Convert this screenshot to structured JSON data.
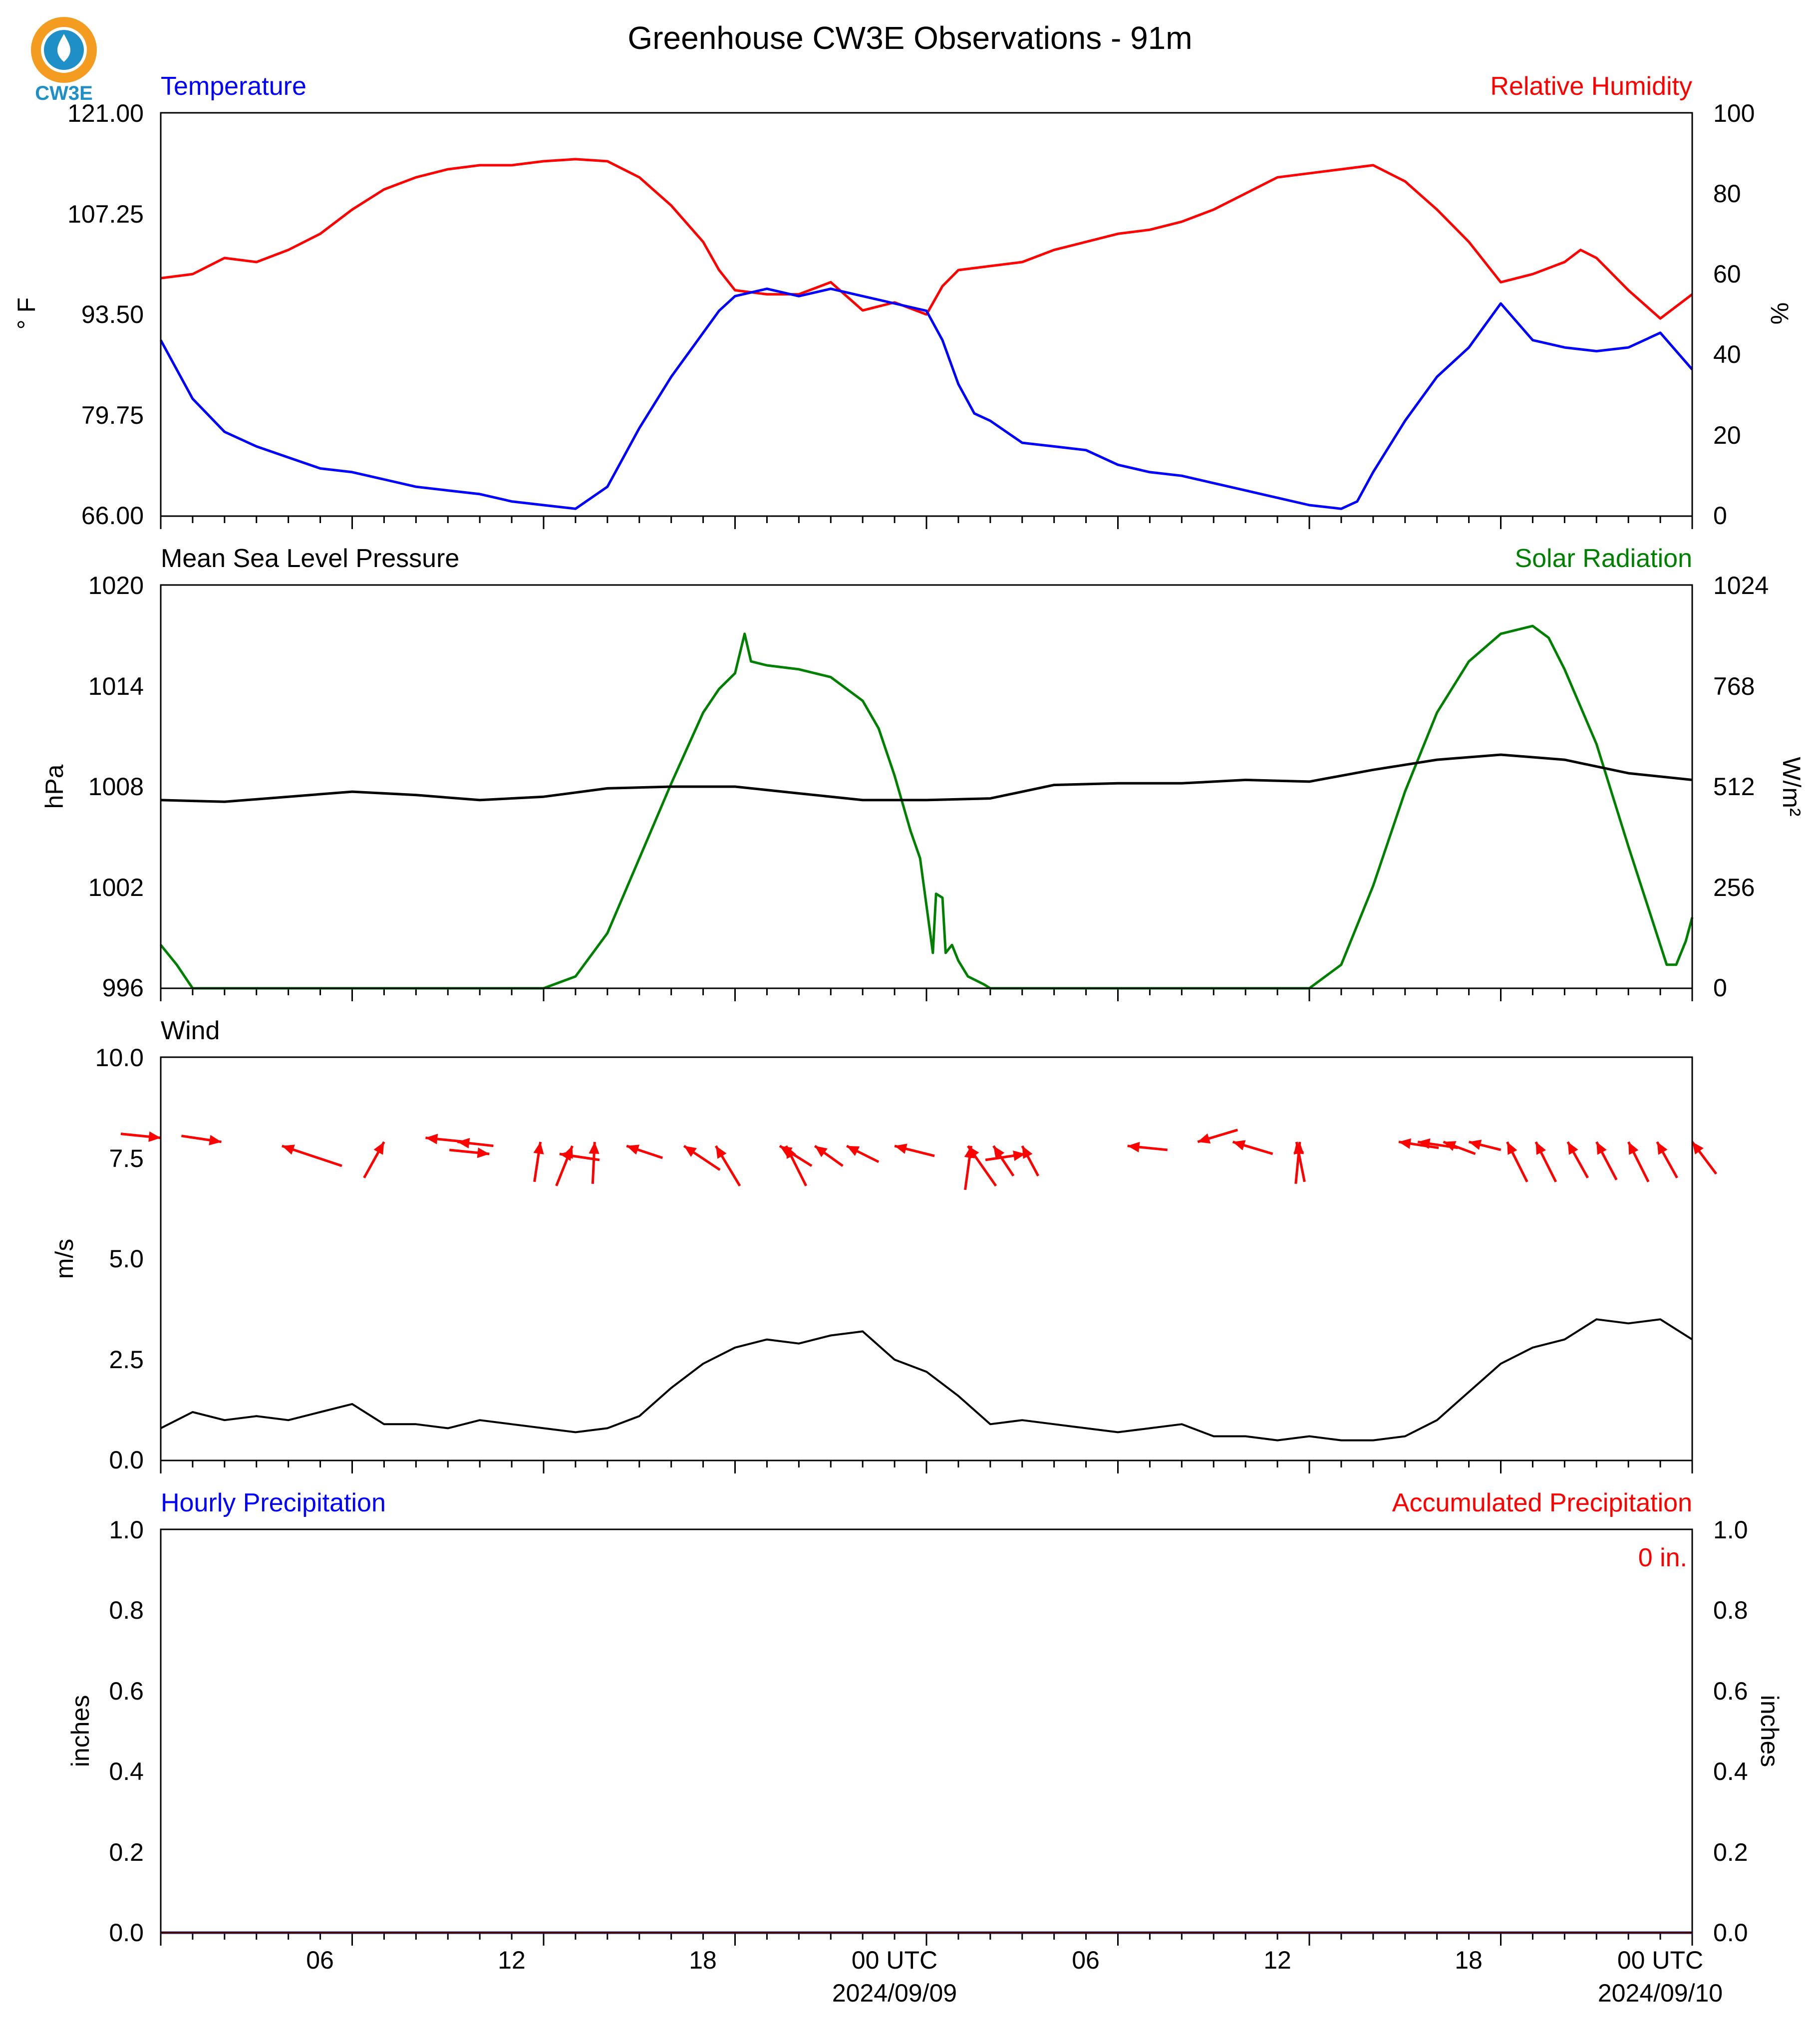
{
  "title": "Greenhouse CW3E Observations - 91m",
  "logo": {
    "text": "CW3E",
    "ring_color": "#f39c1f",
    "drop_color": "#1f8fc8"
  },
  "colors": {
    "temperature": "#0000ff",
    "humidity": "#ff0000",
    "pressure": "#000000",
    "solar": "#008000",
    "wind_speed": "#000000",
    "wind_arrow": "#ff0000",
    "precip_hourly": "#0000ff",
    "precip_accum": "#ff0000"
  },
  "x_axis": {
    "unit": "hours since 2024-09-08 00 UTC",
    "range": [
      0,
      48
    ],
    "major_ticks": [
      {
        "x": 6,
        "label": "06",
        "date": ""
      },
      {
        "x": 12,
        "label": "12",
        "date": ""
      },
      {
        "x": 18,
        "label": "18",
        "date": ""
      },
      {
        "x": 24,
        "label": "00 UTC",
        "date": "2024/09/09"
      },
      {
        "x": 30,
        "label": "06",
        "date": ""
      },
      {
        "x": 36,
        "label": "12",
        "date": ""
      },
      {
        "x": 42,
        "label": "18",
        "date": ""
      },
      {
        "x": 48,
        "label": "00 UTC",
        "date": "2024/09/10"
      }
    ]
  },
  "panels": {
    "temp_rh": {
      "left_title": "Temperature",
      "right_title": "Relative Humidity",
      "left_ylabel": "° F",
      "right_ylabel": "%",
      "left_ticks": [
        "121.00",
        "107.25",
        "93.50",
        "79.75",
        "66.00"
      ],
      "right_ticks": [
        "100",
        "80",
        "60",
        "40",
        "20",
        "0"
      ]
    },
    "pressure_solar": {
      "left_title": "Mean Sea Level Pressure",
      "right_title": "Solar Radiation",
      "left_ylabel": "hPa",
      "right_ylabel": "W/m²",
      "left_ticks": [
        "1020",
        "1014",
        "1008",
        "1002",
        "996"
      ],
      "right_ticks": [
        "1024",
        "768",
        "512",
        "256",
        "0"
      ]
    },
    "wind": {
      "left_title": "Wind",
      "left_ylabel": "m/s",
      "left_ticks": [
        "10.0",
        "7.5",
        "5.0",
        "2.5",
        "0.0"
      ]
    },
    "precip": {
      "left_title": "Hourly Precipitation",
      "right_title": "Accumulated Precipitation",
      "left_ylabel": "inches",
      "right_ylabel": "inches",
      "left_ticks": [
        "1.0",
        "0.8",
        "0.6",
        "0.4",
        "0.2",
        "0.0"
      ],
      "right_ticks": [
        "1.0",
        "0.8",
        "0.6",
        "0.4",
        "0.2",
        "0.0"
      ],
      "total_label": "0 in."
    }
  },
  "chart_data": [
    {
      "type": "line",
      "title": "Temperature",
      "x_unit": "hours since 2024-09-08 00 UTC",
      "ylim": [
        66,
        121
      ],
      "y_unit": "°F",
      "series": [
        {
          "name": "Temperature",
          "x": [
            0,
            1,
            2,
            3,
            4,
            5,
            6,
            7,
            8,
            9,
            10,
            11,
            12,
            13,
            14,
            15,
            16,
            17,
            17.5,
            18,
            19,
            20,
            21,
            22,
            23,
            24,
            24.5,
            25,
            25.5,
            26,
            27,
            28,
            29,
            30,
            31,
            32,
            33,
            34,
            35,
            36,
            37,
            37.5,
            38,
            39,
            40,
            41,
            41.5,
            42,
            43,
            44,
            45,
            46,
            47,
            48
          ],
          "y": [
            90,
            82,
            77.5,
            75.5,
            74,
            72.5,
            72,
            71,
            70,
            69.5,
            69,
            68,
            67.5,
            67,
            70,
            78,
            85,
            91,
            94,
            96,
            97,
            96,
            97,
            96,
            95,
            94,
            90,
            84,
            80,
            79,
            76,
            75.5,
            75,
            73,
            72,
            71.5,
            70.5,
            69.5,
            68.5,
            67.5,
            67,
            68,
            72,
            79,
            85,
            89,
            92,
            95,
            90,
            89,
            88.5,
            89,
            91,
            86
          ]
        }
      ]
    },
    {
      "type": "line",
      "title": "Relative Humidity",
      "x_unit": "hours since 2024-09-08 00 UTC",
      "ylim": [
        0,
        100
      ],
      "y_unit": "%",
      "series": [
        {
          "name": "Relative Humidity",
          "x": [
            0,
            1,
            2,
            3,
            4,
            5,
            6,
            7,
            8,
            9,
            10,
            11,
            12,
            13,
            14,
            15,
            16,
            17,
            17.5,
            18,
            19,
            20,
            21,
            22,
            23,
            24,
            24.5,
            25,
            26,
            27,
            28,
            29,
            30,
            31,
            32,
            33,
            34,
            35,
            36,
            37,
            38,
            39,
            40,
            41,
            42,
            43,
            44,
            44.5,
            45,
            46,
            47,
            48
          ],
          "y": [
            59,
            60,
            64,
            63,
            66,
            70,
            76,
            81,
            84,
            86,
            87,
            87,
            88,
            88.5,
            88,
            84,
            77,
            68,
            61,
            56,
            55,
            55,
            58,
            51,
            53,
            50,
            57,
            61,
            62,
            63,
            66,
            68,
            70,
            71,
            73,
            76,
            80,
            84,
            85,
            86,
            87,
            83,
            76,
            68,
            58,
            60,
            63,
            66,
            64,
            56,
            49,
            55
          ]
        }
      ]
    },
    {
      "type": "line",
      "title": "Mean Sea Level Pressure",
      "x_unit": "hours since 2024-09-08 00 UTC",
      "ylim": [
        996,
        1020
      ],
      "y_unit": "hPa",
      "series": [
        {
          "name": "Mean Sea Level Pressure",
          "x": [
            0,
            2,
            4,
            6,
            8,
            10,
            12,
            14,
            16,
            18,
            20,
            22,
            24,
            26,
            28,
            30,
            32,
            34,
            36,
            38,
            40,
            42,
            44,
            46,
            48
          ],
          "y": [
            1007.2,
            1007.1,
            1007.4,
            1007.7,
            1007.5,
            1007.2,
            1007.4,
            1007.9,
            1008.0,
            1008.0,
            1007.6,
            1007.2,
            1007.2,
            1007.3,
            1008.1,
            1008.2,
            1008.2,
            1008.4,
            1008.3,
            1009.0,
            1009.6,
            1009.9,
            1009.6,
            1008.8,
            1008.4
          ]
        }
      ]
    },
    {
      "type": "line",
      "title": "Solar Radiation",
      "x_unit": "hours since 2024-09-08 00 UTC",
      "ylim": [
        0,
        1024
      ],
      "y_unit": "W/m²",
      "series": [
        {
          "name": "Solar Radiation",
          "x": [
            0,
            0.5,
            1,
            12,
            13,
            14,
            15,
            16,
            17,
            17.5,
            18,
            18.3,
            18.5,
            19,
            20,
            21,
            22,
            22.5,
            23,
            23.5,
            23.8,
            24,
            24.2,
            24.3,
            24.5,
            24.6,
            24.8,
            25,
            25.3,
            25.8,
            26,
            36,
            37,
            38,
            39,
            40,
            41,
            42,
            43,
            43.5,
            44,
            45,
            46,
            47,
            47.2,
            47.5,
            47.8,
            48
          ],
          "y": [
            110,
            60,
            0,
            0,
            30,
            140,
            330,
            520,
            700,
            760,
            800,
            900,
            830,
            820,
            810,
            790,
            730,
            660,
            540,
            400,
            330,
            210,
            90,
            240,
            230,
            90,
            110,
            70,
            30,
            10,
            0,
            0,
            60,
            260,
            500,
            700,
            830,
            900,
            920,
            890,
            810,
            620,
            360,
            110,
            60,
            60,
            120,
            180
          ]
        }
      ]
    },
    {
      "type": "line",
      "title": "Wind",
      "x_unit": "hours since 2024-09-08 00 UTC",
      "ylim": [
        0,
        10
      ],
      "y_unit": "m/s",
      "series": [
        {
          "name": "Wind speed",
          "x": [
            0,
            1,
            2,
            3,
            4,
            5,
            6,
            7,
            8,
            9,
            10,
            11,
            12,
            13,
            14,
            15,
            16,
            17,
            18,
            19,
            20,
            21,
            22,
            23,
            24,
            25,
            26,
            27,
            28,
            29,
            30,
            31,
            32,
            33,
            34,
            35,
            36,
            37,
            38,
            39,
            40,
            41,
            42,
            43,
            44,
            45,
            46,
            47,
            48
          ],
          "y": [
            0.8,
            1.2,
            1.0,
            1.1,
            1.0,
            1.2,
            1.4,
            0.9,
            0.9,
            0.8,
            1.0,
            0.9,
            0.8,
            0.7,
            0.8,
            1.1,
            1.8,
            2.4,
            2.8,
            3.0,
            2.9,
            3.1,
            3.2,
            2.5,
            2.2,
            1.6,
            0.9,
            1.0,
            0.9,
            0.8,
            0.7,
            0.8,
            0.9,
            0.6,
            0.6,
            0.5,
            0.6,
            0.5,
            0.5,
            0.6,
            1.0,
            1.7,
            2.4,
            2.8,
            3.0,
            3.5,
            3.4,
            3.5,
            3.0
          ]
        }
      ]
    },
    {
      "type": "line",
      "title": "Hourly Precipitation",
      "x_unit": "hours since 2024-09-08 00 UTC",
      "ylim": [
        0,
        1
      ],
      "y_unit": "inches",
      "series": [
        {
          "name": "Hourly Precipitation",
          "x": [
            0,
            48
          ],
          "y": [
            0,
            0
          ]
        },
        {
          "name": "Accumulated Precipitation",
          "x": [
            0,
            48
          ],
          "y": [
            0,
            0
          ]
        }
      ]
    }
  ],
  "wind_arrows": {
    "note_units": "x in hours, y in m/s (arrow head end), vector in m/s",
    "items": [
      {
        "x": 0.0,
        "y": 8.0,
        "u": 2.0,
        "v": -0.2
      },
      {
        "x": 1.9,
        "y": 7.9,
        "u": 2.0,
        "v": -0.3
      },
      {
        "x": 3.8,
        "y": 7.8,
        "u": -3.0,
        "v": 1.0
      },
      {
        "x": 7.0,
        "y": 7.9,
        "u": 1.0,
        "v": 1.8
      },
      {
        "x": 8.3,
        "y": 8.0,
        "u": -2.0,
        "v": 0.2
      },
      {
        "x": 9.3,
        "y": 7.9,
        "u": -1.8,
        "v": 0.2
      },
      {
        "x": 10.3,
        "y": 7.6,
        "u": 2.0,
        "v": -0.2
      },
      {
        "x": 11.9,
        "y": 7.9,
        "u": 0.3,
        "v": 2.0
      },
      {
        "x": 12.5,
        "y": 7.6,
        "u": -2.0,
        "v": 0.3
      },
      {
        "x": 12.9,
        "y": 7.8,
        "u": 0.8,
        "v": 2.0
      },
      {
        "x": 13.6,
        "y": 7.9,
        "u": 0.1,
        "v": 2.1
      },
      {
        "x": 14.6,
        "y": 7.8,
        "u": -1.8,
        "v": 0.6
      },
      {
        "x": 16.4,
        "y": 7.8,
        "u": -1.8,
        "v": 1.2
      },
      {
        "x": 17.4,
        "y": 7.8,
        "u": -1.2,
        "v": 2.0
      },
      {
        "x": 19.4,
        "y": 7.8,
        "u": -1.6,
        "v": 1.0
      },
      {
        "x": 19.6,
        "y": 7.8,
        "u": -1.0,
        "v": 2.0
      },
      {
        "x": 20.5,
        "y": 7.8,
        "u": -1.4,
        "v": 1.0
      },
      {
        "x": 21.5,
        "y": 7.8,
        "u": -1.6,
        "v": 0.8
      },
      {
        "x": 23.0,
        "y": 7.8,
        "u": -2.0,
        "v": 0.5
      },
      {
        "x": 25.3,
        "y": 7.8,
        "u": -1.4,
        "v": 2.0
      },
      {
        "x": 25.4,
        "y": 7.8,
        "u": 0.3,
        "v": 2.2
      },
      {
        "x": 26.1,
        "y": 7.8,
        "u": -1.0,
        "v": 1.5
      },
      {
        "x": 27.0,
        "y": 7.8,
        "u": -0.8,
        "v": 1.5
      },
      {
        "x": 27.1,
        "y": 7.6,
        "u": 2.0,
        "v": 0.3
      },
      {
        "x": 30.3,
        "y": 7.8,
        "u": -2.0,
        "v": 0.2
      },
      {
        "x": 32.5,
        "y": 7.9,
        "u": -2.0,
        "v": -0.6
      },
      {
        "x": 33.6,
        "y": 7.9,
        "u": -2.0,
        "v": 0.6
      },
      {
        "x": 35.6,
        "y": 7.9,
        "u": -0.4,
        "v": 2.0
      },
      {
        "x": 35.7,
        "y": 7.9,
        "u": 0.2,
        "v": 2.1
      },
      {
        "x": 38.8,
        "y": 7.9,
        "u": -2.0,
        "v": 0.3
      },
      {
        "x": 39.4,
        "y": 7.9,
        "u": -2.0,
        "v": 0.3
      },
      {
        "x": 40.2,
        "y": 7.9,
        "u": -1.6,
        "v": 0.6
      },
      {
        "x": 41.0,
        "y": 7.9,
        "u": -1.6,
        "v": 0.4
      },
      {
        "x": 42.2,
        "y": 7.9,
        "u": -1.0,
        "v": 2.0
      },
      {
        "x": 43.1,
        "y": 7.9,
        "u": -1.0,
        "v": 2.0
      },
      {
        "x": 44.1,
        "y": 7.9,
        "u": -1.0,
        "v": 1.8
      },
      {
        "x": 45.0,
        "y": 7.9,
        "u": -1.0,
        "v": 1.9
      },
      {
        "x": 46.0,
        "y": 7.9,
        "u": -1.0,
        "v": 2.0
      },
      {
        "x": 46.9,
        "y": 7.9,
        "u": -1.0,
        "v": 1.8
      },
      {
        "x": 48.0,
        "y": 7.9,
        "u": -1.2,
        "v": 1.6
      }
    ]
  }
}
